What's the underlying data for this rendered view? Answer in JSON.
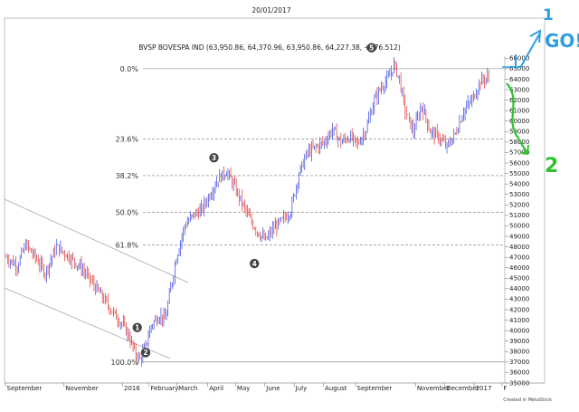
{
  "chart_data": {
    "type": "candlestick",
    "date": "20/01/2017",
    "title": "BVSP BOVESPA IND (63,950.86, 64,370.96, 63,950.86, 64,227.38, +276.512)",
    "credit": "Created in MetaStock",
    "y_ticks": [
      35000,
      36000,
      37000,
      38000,
      39000,
      40000,
      41000,
      42000,
      43000,
      44000,
      45000,
      46000,
      47000,
      48000,
      49000,
      50000,
      51000,
      52000,
      53000,
      54000,
      55000,
      56000,
      57000,
      58000,
      59000,
      60000,
      61000,
      62000,
      63000,
      64000,
      65000,
      66000
    ],
    "ylim": [
      35000,
      66200
    ],
    "x_labels": [
      {
        "label": "September",
        "index": 0
      },
      {
        "label": "November",
        "index": 42
      },
      {
        "label": "2016",
        "index": 84
      },
      {
        "label": "February",
        "index": 103
      },
      {
        "label": "March",
        "index": 123
      },
      {
        "label": "April",
        "index": 145
      },
      {
        "label": "May",
        "index": 165
      },
      {
        "label": "June",
        "index": 186
      },
      {
        "label": "July",
        "index": 207
      },
      {
        "label": "August",
        "index": 228
      },
      {
        "label": "September",
        "index": 251
      },
      {
        "label": "November",
        "index": 294
      },
      {
        "label": "December",
        "index": 315
      },
      {
        "label": "2017",
        "index": 336
      },
      {
        "label": "F",
        "index": 356
      }
    ],
    "anchors": [
      [
        0,
        47000
      ],
      [
        8,
        46200
      ],
      [
        14,
        48200
      ],
      [
        22,
        46800
      ],
      [
        28,
        45500
      ],
      [
        36,
        48000
      ],
      [
        44,
        47200
      ],
      [
        54,
        46000
      ],
      [
        62,
        44500
      ],
      [
        70,
        43000
      ],
      [
        78,
        41500
      ],
      [
        84,
        40500
      ],
      [
        88,
        39500
      ],
      [
        92,
        38000
      ],
      [
        96,
        37200
      ],
      [
        100,
        38500
      ],
      [
        104,
        40500
      ],
      [
        110,
        41500
      ],
      [
        114,
        41000
      ],
      [
        118,
        44000
      ],
      [
        122,
        47000
      ],
      [
        128,
        50000
      ],
      [
        134,
        51000
      ],
      [
        140,
        51500
      ],
      [
        146,
        53000
      ],
      [
        152,
        54500
      ],
      [
        158,
        55200
      ],
      [
        162,
        54200
      ],
      [
        168,
        52500
      ],
      [
        174,
        50800
      ],
      [
        180,
        49500
      ],
      [
        186,
        48600
      ],
      [
        192,
        49800
      ],
      [
        198,
        50500
      ],
      [
        204,
        51500
      ],
      [
        210,
        55000
      ],
      [
        216,
        57000
      ],
      [
        222,
        57500
      ],
      [
        228,
        58000
      ],
      [
        234,
        59200
      ],
      [
        240,
        58000
      ],
      [
        246,
        58500
      ],
      [
        252,
        57800
      ],
      [
        258,
        59200
      ],
      [
        264,
        62000
      ],
      [
        270,
        63500
      ],
      [
        274,
        64000
      ],
      [
        278,
        65400
      ],
      [
        282,
        64000
      ],
      [
        286,
        61000
      ],
      [
        292,
        59000
      ],
      [
        298,
        61500
      ],
      [
        304,
        59000
      ],
      [
        310,
        58500
      ],
      [
        316,
        57500
      ],
      [
        322,
        58800
      ],
      [
        328,
        61000
      ],
      [
        334,
        62000
      ],
      [
        340,
        63800
      ],
      [
        346,
        64227
      ]
    ],
    "fib_levels": [
      {
        "label": "0.0%",
        "value": 65000
      },
      {
        "label": "23.6%",
        "value": 58300
      },
      {
        "label": "38.2%",
        "value": 54800
      },
      {
        "label": "50.0%",
        "value": 51300
      },
      {
        "label": "61.8%",
        "value": 48200
      },
      {
        "label": "100.0%",
        "value": 37000
      }
    ],
    "waves": [
      {
        "label": "1",
        "index": 94,
        "value": 40300
      },
      {
        "label": "2",
        "index": 100,
        "value": 37900
      },
      {
        "label": "3",
        "index": 149,
        "value": 56500
      },
      {
        "label": "4",
        "index": 178,
        "value": 46400
      },
      {
        "label": "5",
        "index": 262,
        "value": 67000
      }
    ],
    "annotations": [
      {
        "text": "GO!",
        "color": "#2f9de0"
      },
      {
        "text": "1",
        "color": "#2f9de0"
      },
      {
        "text": "2",
        "color": "#2fc42f"
      }
    ],
    "colors": {
      "up": "#3344dd",
      "down": "#dd3333",
      "fib": "#777777",
      "channel": "#aaaaaa",
      "go": "#2f9de0",
      "green": "#2fc42f"
    }
  }
}
